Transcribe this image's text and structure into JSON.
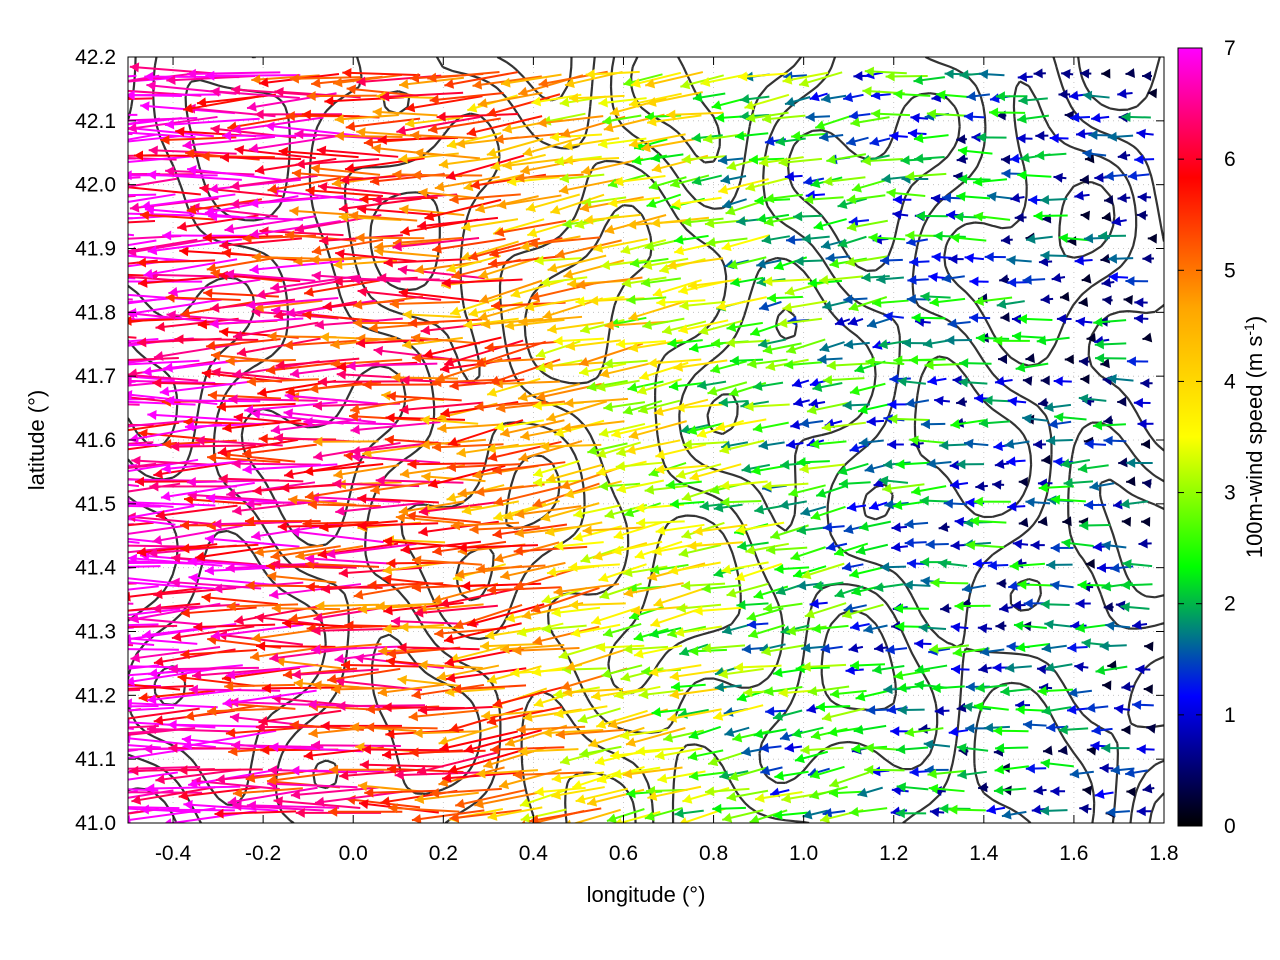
{
  "chart_data": {
    "type": "vector-field",
    "xlabel": "longitude (°)",
    "ylabel": "latitude (°)",
    "xlim": [
      -0.5,
      1.8
    ],
    "ylim": [
      41.0,
      42.2
    ],
    "xticks": [
      "-0.4",
      "-0.2",
      "0.0",
      "0.2",
      "0.4",
      "0.6",
      "0.8",
      "1.0",
      "1.2",
      "1.4",
      "1.6",
      "1.8"
    ],
    "yticks": [
      "41.0",
      "41.1",
      "41.2",
      "41.3",
      "41.4",
      "41.5",
      "41.6",
      "41.7",
      "41.8",
      "41.9",
      "42.0",
      "42.1",
      "42.2"
    ],
    "grid": true,
    "colorbar": {
      "label_main": "100m-wind speed (m s",
      "label_sup": "-1",
      "label_tail": ")",
      "range": [
        0,
        7
      ],
      "ticks": [
        "0",
        "1",
        "2",
        "3",
        "4",
        "5",
        "6",
        "7"
      ],
      "stops": [
        "#000000",
        "#0000ff",
        "#00ff00",
        "#ffff00",
        "#ffa500",
        "#ff0000",
        "#ff00ff"
      ]
    },
    "wind_regions": [
      {
        "region": "west (lon -0.5 to 0.3)",
        "speed_range": [
          4,
          7
        ],
        "direction": "easterly (toward west)"
      },
      {
        "region": "center (lon 0.3 to 1.0)",
        "speed_range": [
          2,
          6
        ],
        "direction": "east-southeasterly"
      },
      {
        "region": "east (lon 1.0 to 1.8)",
        "speed_range": [
          0,
          3
        ],
        "direction": "easterly, weak"
      }
    ],
    "contours": "terrain elevation isolines (unlabeled)"
  }
}
